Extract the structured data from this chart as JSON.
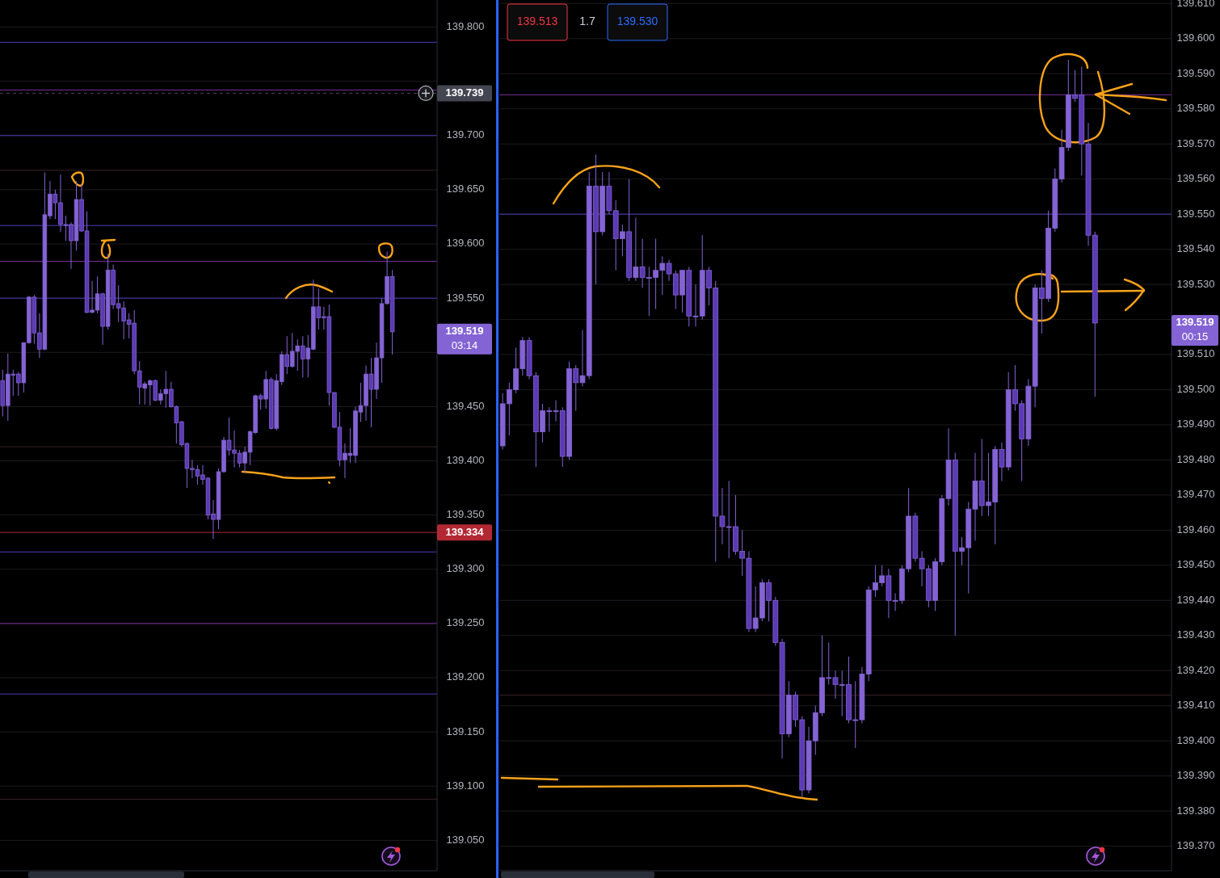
{
  "chart_data": [
    {
      "type": "candlestick",
      "categories": [
        null,
        null,
        null,
        null,
        null,
        null,
        null,
        null,
        null,
        null,
        null,
        null,
        null,
        null,
        null,
        null,
        null,
        null,
        null,
        null,
        null,
        null,
        null,
        null,
        null,
        null,
        null,
        null,
        null,
        null,
        null,
        null,
        null,
        null,
        null,
        null,
        null,
        null,
        null,
        null,
        null,
        null,
        null,
        null,
        null,
        null,
        null,
        null,
        null,
        null,
        null,
        null,
        null,
        null,
        null,
        null,
        null,
        null,
        null,
        null,
        null,
        null,
        null,
        null,
        null,
        null,
        null,
        null,
        null,
        null,
        null,
        null,
        null,
        null,
        null,
        null,
        null,
        null,
        null,
        null,
        null,
        null,
        null
      ],
      "ohlc": [
        [
          139.474,
          139.484,
          139.441,
          139.451
        ],
        [
          139.451,
          139.499,
          139.437,
          139.48
        ],
        [
          139.48,
          139.484,
          139.46,
          139.479
        ],
        [
          139.48,
          139.482,
          139.46,
          139.472
        ],
        [
          139.472,
          139.509,
          139.463,
          139.509
        ],
        [
          139.509,
          139.552,
          139.508,
          139.551
        ],
        [
          139.551,
          139.553,
          139.508,
          139.518
        ],
        [
          139.518,
          139.536,
          139.495,
          139.503
        ],
        [
          139.503,
          139.666,
          139.502,
          139.627
        ],
        [
          139.626,
          139.658,
          139.623,
          139.646
        ],
        [
          139.646,
          139.65,
          139.623,
          139.638
        ],
        [
          139.638,
          139.664,
          139.611,
          139.618
        ],
        [
          139.618,
          139.626,
          139.603,
          139.617
        ],
        [
          139.618,
          139.62,
          139.577,
          139.603
        ],
        [
          139.603,
          139.658,
          139.594,
          139.641
        ],
        [
          139.641,
          139.655,
          139.611,
          139.612
        ],
        [
          139.612,
          139.63,
          139.536,
          139.537
        ],
        [
          139.537,
          139.566,
          139.536,
          139.539
        ],
        [
          139.539,
          139.57,
          139.536,
          139.554
        ],
        [
          139.554,
          139.555,
          139.507,
          139.524
        ],
        [
          139.524,
          139.591,
          139.521,
          139.576
        ],
        [
          139.576,
          139.581,
          139.54,
          139.544
        ],
        [
          139.545,
          139.562,
          139.528,
          139.541
        ],
        [
          139.541,
          139.547,
          139.512,
          139.529
        ],
        [
          139.53,
          139.536,
          139.513,
          139.526
        ],
        [
          139.527,
          139.539,
          139.48,
          139.483
        ],
        [
          139.483,
          139.492,
          139.452,
          139.468
        ],
        [
          139.467,
          139.473,
          139.452,
          139.471
        ],
        [
          139.47,
          139.475,
          139.451,
          139.474
        ],
        [
          139.474,
          139.475,
          139.455,
          139.456
        ],
        [
          139.456,
          139.466,
          139.452,
          139.462
        ],
        [
          139.462,
          139.483,
          139.449,
          139.466
        ],
        [
          139.466,
          139.473,
          139.449,
          139.45
        ],
        [
          139.45,
          139.451,
          139.416,
          139.435
        ],
        [
          139.436,
          139.437,
          139.413,
          139.415
        ],
        [
          139.416,
          139.417,
          139.375,
          139.393
        ],
        [
          139.393,
          139.401,
          139.384,
          139.392
        ],
        [
          139.392,
          139.396,
          139.378,
          139.386
        ],
        [
          139.387,
          139.396,
          139.378,
          139.383
        ],
        [
          139.384,
          139.385,
          139.346,
          139.35
        ],
        [
          139.351,
          139.364,
          139.328,
          139.346
        ],
        [
          139.346,
          139.393,
          139.337,
          139.39
        ],
        [
          139.39,
          139.422,
          139.389,
          139.419
        ],
        [
          139.419,
          139.44,
          139.405,
          139.41
        ],
        [
          139.41,
          139.428,
          139.394,
          139.407
        ],
        [
          139.407,
          139.41,
          139.394,
          139.398
        ],
        [
          139.398,
          139.413,
          139.389,
          139.408
        ],
        [
          139.408,
          139.428,
          139.396,
          139.427
        ],
        [
          139.426,
          139.461,
          139.425,
          139.46
        ],
        [
          139.46,
          139.462,
          139.447,
          139.457
        ],
        [
          139.457,
          139.483,
          139.448,
          139.475
        ],
        [
          139.475,
          139.477,
          139.429,
          139.43
        ],
        [
          139.43,
          139.48,
          139.428,
          139.474
        ],
        [
          139.473,
          139.501,
          139.47,
          139.498
        ],
        [
          139.498,
          139.515,
          139.48,
          139.487
        ],
        [
          139.487,
          139.518,
          139.486,
          139.501
        ],
        [
          139.501,
          139.512,
          139.483,
          139.506
        ],
        [
          139.506,
          139.515,
          139.477,
          139.494
        ],
        [
          139.494,
          139.516,
          139.477,
          139.504
        ],
        [
          139.503,
          139.567,
          139.502,
          139.542
        ],
        [
          139.542,
          139.559,
          139.521,
          139.532
        ],
        [
          139.533,
          139.542,
          139.521,
          139.532
        ],
        [
          139.533,
          139.544,
          139.451,
          139.463
        ],
        [
          139.463,
          139.463,
          139.43,
          139.431
        ],
        [
          139.431,
          139.445,
          139.395,
          139.401
        ],
        [
          139.401,
          139.416,
          139.384,
          139.407
        ],
        [
          139.405,
          139.43,
          139.398,
          139.407
        ],
        [
          139.405,
          139.45,
          139.398,
          139.446
        ],
        [
          139.445,
          139.472,
          139.436,
          139.451
        ],
        [
          139.451,
          139.488,
          139.437,
          139.48
        ],
        [
          139.48,
          139.495,
          139.431,
          139.466
        ],
        [
          139.466,
          139.509,
          139.457,
          139.495
        ],
        [
          139.495,
          139.55,
          139.472,
          139.545
        ],
        [
          139.545,
          139.593,
          139.544,
          139.57
        ],
        [
          139.57,
          139.576,
          139.498,
          139.519
        ],
        null,
        null,
        null,
        null,
        null,
        null,
        null,
        null
      ],
      "color": "#8463d4",
      "colors": [
        "#5b3ab5",
        "#8463d4",
        "#5b3ab5",
        "#5b3ab5",
        "#8463d4",
        "#8463d4",
        "#5b3ab5",
        "#5b3ab5",
        "#8463d4",
        "#8463d4",
        "#5b3ab5",
        "#5b3ab5",
        "#5b3ab5",
        "#5b3ab5",
        "#8463d4",
        "#5b3ab5",
        "#5b3ab5",
        "#8463d4",
        "#8463d4",
        "#5b3ab5",
        "#8463d4",
        "#5b3ab5",
        "#5b3ab5",
        "#5b3ab5",
        "#5b3ab5",
        "#5b3ab5",
        "#5b3ab5",
        "#8463d4",
        "#8463d4",
        "#5b3ab5",
        "#8463d4",
        "#8463d4",
        "#5b3ab5",
        "#5b3ab5",
        "#5b3ab5",
        "#5b3ab5",
        "#5b3ab5",
        "#5b3ab5",
        "#5b3ab5",
        "#5b3ab5",
        "#5b3ab5",
        "#8463d4",
        "#8463d4",
        "#5b3ab5",
        "#5b3ab5",
        "#5b3ab5",
        "#8463d4",
        "#8463d4",
        "#8463d4",
        "#5b3ab5",
        "#8463d4",
        "#5b3ab5",
        "#8463d4",
        "#8463d4",
        "#5b3ab5",
        "#8463d4",
        "#8463d4",
        "#5b3ab5",
        "#8463d4",
        "#8463d4",
        "#5b3ab5",
        "#5b3ab5",
        "#5b3ab5",
        "#5b3ab5",
        "#5b3ab5",
        "#8463d4",
        "#8463d4",
        "#8463d4",
        "#8463d4",
        "#8463d4",
        "#5b3ab5",
        "#8463d4",
        "#8463d4",
        "#8463d4",
        "#5b3ab5",
        null,
        null,
        null,
        null,
        null,
        null,
        null,
        null
      ],
      "ylim": [
        139.022,
        139.825
      ],
      "yticks": [
        {
          "value": 139.05,
          "label": "139.050"
        },
        {
          "value": 139.1,
          "label": "139.100"
        },
        {
          "value": 139.15,
          "label": "139.150"
        },
        {
          "value": 139.2,
          "label": "139.200"
        },
        {
          "value": 139.25,
          "label": "139.250"
        },
        {
          "value": 139.3,
          "label": "139.300"
        },
        {
          "value": 139.35,
          "label": "139.350"
        },
        {
          "value": 139.4,
          "label": "139.400"
        },
        {
          "value": 139.45,
          "label": "139.450"
        },
        {
          "value": 139.5,
          "label": null
        },
        {
          "value": 139.55,
          "label": "139.550"
        },
        {
          "value": 139.6,
          "label": "139.600"
        },
        {
          "value": 139.65,
          "label": "139.650"
        },
        {
          "value": 139.7,
          "label": "139.700"
        },
        {
          "value": 139.75,
          "label": null
        },
        {
          "value": 139.8,
          "label": "139.800"
        }
      ],
      "grid": "y",
      "tick_labels": "y",
      "ref_lines": [
        {
          "axis": "y",
          "value": 139.786,
          "color": "#4a3db8"
        },
        {
          "axis": "y",
          "value": 139.742,
          "color": "#7b2d9e"
        },
        {
          "axis": "y",
          "value": 139.739,
          "color": "#434651",
          "line_style": "dashed",
          "label": "139.739"
        },
        {
          "axis": "y",
          "value": 139.7,
          "color": "#4b3db8"
        },
        {
          "axis": "y",
          "value": 139.668,
          "color": "#3a2226"
        },
        {
          "axis": "y",
          "value": 139.617,
          "color": "#4a3eb8"
        },
        {
          "axis": "y",
          "value": 139.584,
          "color": "#7b2d9f"
        },
        {
          "axis": "y",
          "value": 139.55,
          "color": "#4b3eb8"
        },
        {
          "axis": "y",
          "value": 139.413,
          "color": "#3a2227"
        },
        {
          "axis": "y",
          "value": 139.334,
          "color": "#b22833",
          "label": "139.334"
        },
        {
          "axis": "y",
          "value": 139.316,
          "color": "#4a3cb8"
        },
        {
          "axis": "y",
          "value": 139.25,
          "color": "#7c2d9e"
        },
        {
          "axis": "y",
          "value": 139.185,
          "color": "#493db8"
        },
        {
          "axis": "y",
          "value": 139.088,
          "color": "#3b2226"
        }
      ],
      "annotations": [
        "139.519",
        "03:14"
      ]
    },
    {
      "type": "candlestick",
      "categories": [
        null,
        null,
        null,
        null,
        null,
        null,
        null,
        null,
        null,
        null,
        null,
        null,
        null,
        null,
        null,
        null,
        null,
        null,
        null,
        null,
        null,
        null,
        null,
        null,
        null,
        null,
        null,
        null,
        null,
        null,
        null,
        null,
        null,
        null,
        null,
        null,
        null,
        null,
        null,
        null,
        null,
        null,
        null,
        null,
        null,
        null,
        null,
        null,
        null,
        null,
        null,
        null,
        null,
        null,
        null,
        null,
        null,
        null,
        null,
        null,
        null,
        null,
        null,
        null,
        null,
        null,
        null,
        null,
        null,
        null,
        null,
        null,
        null,
        null,
        null,
        null,
        null,
        null,
        null,
        null,
        null,
        null,
        null,
        null,
        null,
        null,
        null,
        null,
        null,
        null,
        null,
        null,
        null,
        null,
        null,
        null,
        null,
        null,
        null,
        null,
        null
      ],
      "ohlc": [
        [
          139.484,
          139.499,
          139.483,
          139.496
        ],
        [
          139.496,
          139.502,
          139.487,
          139.5
        ],
        [
          139.5,
          139.512,
          139.499,
          139.506
        ],
        [
          139.506,
          139.515,
          139.504,
          139.514
        ],
        [
          139.514,
          139.515,
          139.503,
          139.504
        ],
        [
          139.504,
          139.505,
          139.478,
          139.488
        ],
        [
          139.488,
          139.496,
          139.485,
          139.494
        ],
        [
          139.494,
          139.495,
          139.488,
          139.494
        ],
        [
          139.494,
          139.497,
          139.491,
          139.494
        ],
        [
          139.494,
          139.495,
          139.478,
          139.481
        ],
        [
          139.481,
          139.508,
          139.48,
          139.506
        ],
        [
          139.506,
          139.507,
          139.494,
          139.502
        ],
        [
          139.502,
          139.517,
          139.501,
          139.504
        ],
        [
          139.504,
          139.562,
          139.503,
          139.558
        ],
        [
          139.558,
          139.567,
          139.53,
          139.545
        ],
        [
          139.545,
          139.562,
          139.544,
          139.558
        ],
        [
          139.558,
          139.562,
          139.55,
          139.551
        ],
        [
          139.551,
          139.554,
          139.534,
          139.543
        ],
        [
          139.543,
          139.547,
          139.538,
          139.545
        ],
        [
          139.545,
          139.56,
          139.531,
          139.532
        ],
        [
          139.532,
          139.549,
          139.531,
          139.535
        ],
        [
          139.535,
          139.543,
          139.529,
          139.532
        ],
        [
          139.532,
          139.535,
          139.521,
          139.532
        ],
        [
          139.532,
          139.543,
          139.523,
          139.534
        ],
        [
          139.534,
          139.538,
          139.527,
          139.536
        ],
        [
          139.536,
          139.537,
          139.531,
          139.533
        ],
        [
          139.533,
          139.534,
          139.523,
          139.527
        ],
        [
          139.527,
          139.534,
          139.522,
          139.534
        ],
        [
          139.534,
          139.535,
          139.518,
          139.521
        ],
        [
          139.521,
          139.53,
          139.518,
          139.521
        ],
        [
          139.521,
          139.544,
          139.52,
          139.534
        ],
        [
          139.534,
          139.535,
          139.524,
          139.529
        ],
        [
          139.529,
          139.531,
          139.451,
          139.464
        ],
        [
          139.464,
          139.472,
          139.456,
          139.461
        ],
        [
          139.461,
          139.474,
          139.452,
          139.461
        ],
        [
          139.461,
          139.47,
          139.453,
          139.454
        ],
        [
          139.454,
          139.46,
          139.447,
          139.452
        ],
        [
          139.452,
          139.454,
          139.431,
          139.432
        ],
        [
          139.432,
          139.444,
          139.431,
          139.435
        ],
        [
          139.435,
          139.446,
          139.434,
          139.445
        ],
        [
          139.445,
          139.446,
          139.434,
          139.44
        ],
        [
          139.44,
          139.441,
          139.427,
          139.428
        ],
        [
          139.428,
          139.429,
          139.395,
          139.402
        ],
        [
          139.402,
          139.417,
          139.401,
          139.413
        ],
        [
          139.413,
          139.414,
          139.404,
          139.406
        ],
        [
          139.406,
          139.407,
          139.384,
          139.386
        ],
        [
          139.386,
          139.404,
          139.385,
          139.4
        ],
        [
          139.4,
          139.41,
          139.396,
          139.408
        ],
        [
          139.408,
          139.43,
          139.407,
          139.418
        ],
        [
          139.418,
          139.428,
          139.416,
          139.418
        ],
        [
          139.418,
          139.42,
          139.412,
          139.416
        ],
        [
          139.416,
          139.42,
          139.407,
          139.416
        ],
        [
          139.416,
          139.424,
          139.405,
          139.406
        ],
        [
          139.406,
          139.417,
          139.398,
          139.406
        ],
        [
          139.406,
          139.421,
          139.405,
          139.419
        ],
        [
          139.419,
          139.444,
          139.417,
          139.443
        ],
        [
          139.443,
          139.45,
          139.441,
          139.445
        ],
        [
          139.445,
          139.45,
          139.444,
          139.447
        ],
        [
          139.447,
          139.449,
          139.435,
          139.44
        ],
        [
          139.44,
          139.442,
          139.437,
          139.44
        ],
        [
          139.44,
          139.45,
          139.439,
          139.449
        ],
        [
          139.449,
          139.472,
          139.448,
          139.464
        ],
        [
          139.464,
          139.465,
          139.451,
          139.452
        ],
        [
          139.452,
          139.454,
          139.444,
          139.449
        ],
        [
          139.449,
          139.45,
          139.438,
          139.44
        ],
        [
          139.44,
          139.452,
          139.437,
          139.451
        ],
        [
          139.451,
          139.47,
          139.45,
          139.469
        ],
        [
          139.469,
          139.489,
          139.467,
          139.48
        ],
        [
          139.48,
          139.482,
          139.43,
          139.454
        ],
        [
          139.454,
          139.458,
          139.45,
          139.455
        ],
        [
          139.455,
          139.468,
          139.442,
          139.466
        ],
        [
          139.466,
          139.482,
          139.457,
          139.474
        ],
        [
          139.474,
          139.486,
          139.464,
          139.467
        ],
        [
          139.467,
          139.482,
          139.464,
          139.468
        ],
        [
          139.468,
          139.484,
          139.456,
          139.483
        ],
        [
          139.483,
          139.485,
          139.474,
          139.478
        ],
        [
          139.478,
          139.505,
          139.477,
          139.5
        ],
        [
          139.5,
          139.507,
          139.494,
          139.496
        ],
        [
          139.496,
          139.497,
          139.474,
          139.486
        ],
        [
          139.486,
          139.503,
          139.484,
          139.501
        ],
        [
          139.501,
          139.53,
          139.495,
          139.529
        ],
        [
          139.529,
          139.534,
          139.516,
          139.526
        ],
        [
          139.526,
          139.551,
          139.525,
          139.546
        ],
        [
          139.546,
          139.563,
          139.545,
          139.56
        ],
        [
          139.56,
          139.574,
          139.559,
          139.569
        ],
        [
          139.569,
          139.594,
          139.568,
          139.584
        ],
        [
          139.584,
          139.591,
          139.582,
          139.583
        ],
        [
          139.584,
          139.592,
          139.561,
          139.57
        ],
        [
          139.57,
          139.576,
          139.541,
          139.544
        ],
        [
          139.544,
          139.545,
          139.498,
          139.519
        ],
        null,
        null,
        null,
        null,
        null,
        null,
        null,
        null,
        null,
        null,
        null
      ],
      "color": "#8463d4",
      "colors": [
        "#8463d4",
        "#8463d4",
        "#8463d4",
        "#8463d4",
        "#5b3ab5",
        "#5b3ab5",
        "#8463d4",
        "#8463d4",
        "#8463d4",
        "#5b3ab5",
        "#8463d4",
        "#5b3ab5",
        "#8463d4",
        "#8463d4",
        "#5b3ab5",
        "#8463d4",
        "#5b3ab5",
        "#5b3ab5",
        "#8463d4",
        "#5b3ab5",
        "#8463d4",
        "#5b3ab5",
        "#8463d4",
        "#8463d4",
        "#8463d4",
        "#5b3ab5",
        "#5b3ab5",
        "#8463d4",
        "#5b3ab5",
        "#8463d4",
        "#8463d4",
        "#5b3ab5",
        "#5b3ab5",
        "#5b3ab5",
        "#8463d4",
        "#5b3ab5",
        "#5b3ab5",
        "#5b3ab5",
        "#8463d4",
        "#8463d4",
        "#5b3ab5",
        "#5b3ab5",
        "#5b3ab5",
        "#8463d4",
        "#5b3ab5",
        "#5b3ab5",
        "#8463d4",
        "#8463d4",
        "#8463d4",
        "#8463d4",
        "#5b3ab5",
        "#8463d4",
        "#5b3ab5",
        "#8463d4",
        "#8463d4",
        "#8463d4",
        "#8463d4",
        "#8463d4",
        "#5b3ab5",
        "#8463d4",
        "#8463d4",
        "#8463d4",
        "#5b3ab5",
        "#5b3ab5",
        "#5b3ab5",
        "#8463d4",
        "#8463d4",
        "#8463d4",
        "#5b3ab5",
        "#8463d4",
        "#8463d4",
        "#8463d4",
        "#5b3ab5",
        "#8463d4",
        "#8463d4",
        "#5b3ab5",
        "#8463d4",
        "#5b3ab5",
        "#5b3ab5",
        "#8463d4",
        "#8463d4",
        "#5b3ab5",
        "#8463d4",
        "#8463d4",
        "#8463d4",
        "#8463d4",
        "#5b3ab5",
        "#5b3ab5",
        "#5b3ab5",
        "#5b3ab5",
        null,
        null,
        null,
        null,
        null,
        null,
        null,
        null,
        null,
        null,
        null
      ],
      "ylim": [
        139.363,
        139.611
      ],
      "yticks": [
        {
          "value": 139.37,
          "label": "139.370"
        },
        {
          "value": 139.38,
          "label": "139.380"
        },
        {
          "value": 139.39,
          "label": "139.390"
        },
        {
          "value": 139.4,
          "label": "139.400"
        },
        {
          "value": 139.41,
          "label": "139.410"
        },
        {
          "value": 139.42,
          "label": "139.420"
        },
        {
          "value": 139.43,
          "label": "139.430"
        },
        {
          "value": 139.44,
          "label": "139.440"
        },
        {
          "value": 139.45,
          "label": "139.450"
        },
        {
          "value": 139.46,
          "label": "139.460"
        },
        {
          "value": 139.47,
          "label": "139.470"
        },
        {
          "value": 139.48,
          "label": "139.480"
        },
        {
          "value": 139.49,
          "label": "139.490"
        },
        {
          "value": 139.5,
          "label": "139.500"
        },
        {
          "value": 139.51,
          "label": "139.510"
        },
        {
          "value": 139.52,
          "label": null
        },
        {
          "value": 139.53,
          "label": "139.530"
        },
        {
          "value": 139.54,
          "label": "139.540"
        },
        {
          "value": 139.55,
          "label": "139.550"
        },
        {
          "value": 139.56,
          "label": "139.560"
        },
        {
          "value": 139.57,
          "label": "139.570"
        },
        {
          "value": 139.58,
          "label": "139.580"
        },
        {
          "value": 139.59,
          "label": "139.590"
        },
        {
          "value": 139.6,
          "label": "139.600"
        },
        {
          "value": 139.61,
          "label": "139.610"
        }
      ],
      "grid": "y",
      "tick_labels": "y",
      "ref_lines": [
        {
          "axis": "y",
          "value": 139.584,
          "color": "#7b2d9f"
        },
        {
          "axis": "y",
          "value": 139.55,
          "color": "#4b3eb8"
        },
        {
          "axis": "y",
          "value": 139.413,
          "color": "#3a2227"
        }
      ],
      "annotations": [
        "139.513",
        "1.7",
        "139.530",
        "139.519",
        "00:15"
      ]
    }
  ]
}
